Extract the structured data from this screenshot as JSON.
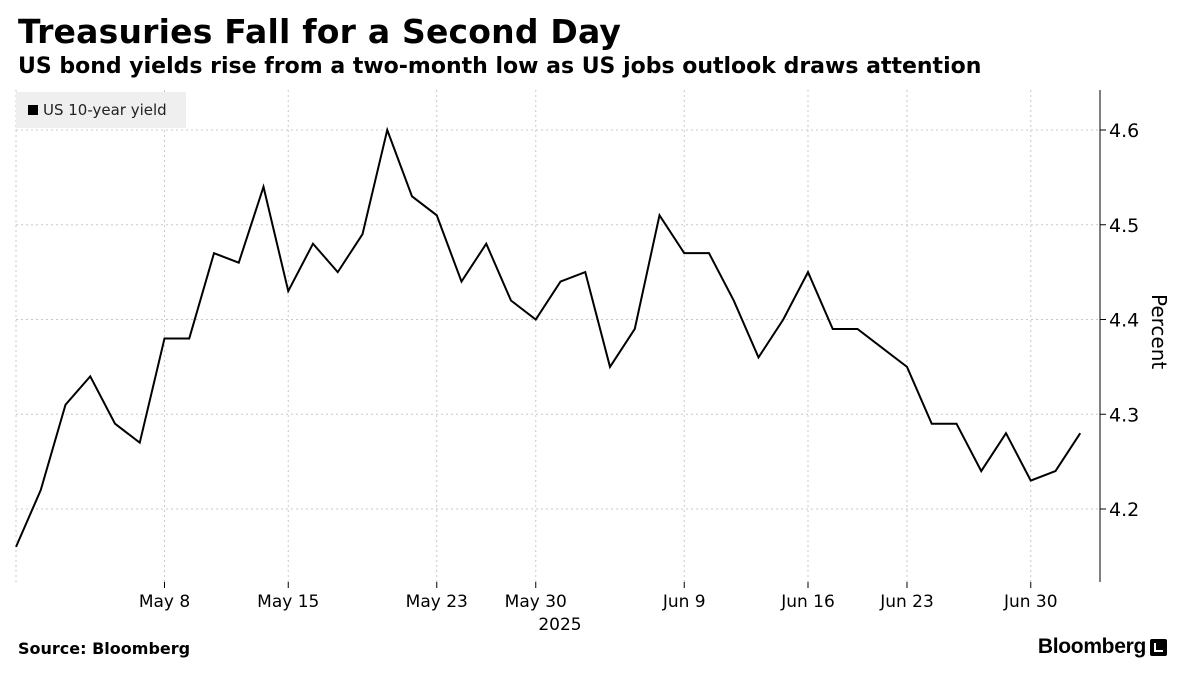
{
  "chart_data": {
    "type": "line",
    "title": "Treasuries Fall for a Second Day",
    "subtitle": "US bond yields rise from a two-month low as US jobs outlook draws attention",
    "ylabel": "Percent",
    "xlabel": "2025",
    "ylim": [
      4.12,
      4.64
    ],
    "yticks": [
      4.2,
      4.3,
      4.4,
      4.5,
      4.6
    ],
    "ytick_labels": [
      "4.2",
      "4.3",
      "4.4",
      "4.5",
      "4.6"
    ],
    "xticks": [
      {
        "label": "May 8",
        "index": 6
      },
      {
        "label": "May 15",
        "index": 11
      },
      {
        "label": "May 23",
        "index": 17
      },
      {
        "label": "May 30",
        "index": 21
      },
      {
        "label": "Jun 9",
        "index": 27
      },
      {
        "label": "Jun 16",
        "index": 32
      },
      {
        "label": "Jun 23",
        "index": 36
      },
      {
        "label": "Jun 30",
        "index": 41
      }
    ],
    "grid": true,
    "legend_position": "top-left",
    "series": [
      {
        "name": "US 10-year yield",
        "color": "#000000",
        "values": [
          4.16,
          4.22,
          4.31,
          4.34,
          4.29,
          4.27,
          4.38,
          4.38,
          4.47,
          4.46,
          4.54,
          4.43,
          4.48,
          4.45,
          4.49,
          4.6,
          4.53,
          4.51,
          4.44,
          4.48,
          4.42,
          4.4,
          4.44,
          4.45,
          4.35,
          4.39,
          4.51,
          4.47,
          4.47,
          4.42,
          4.36,
          4.4,
          4.45,
          4.39,
          4.39,
          4.37,
          4.35,
          4.29,
          4.29,
          4.24,
          4.28,
          4.23,
          4.24,
          4.28
        ]
      }
    ]
  },
  "source": "Source: Bloomberg",
  "brand": "Bloomberg"
}
